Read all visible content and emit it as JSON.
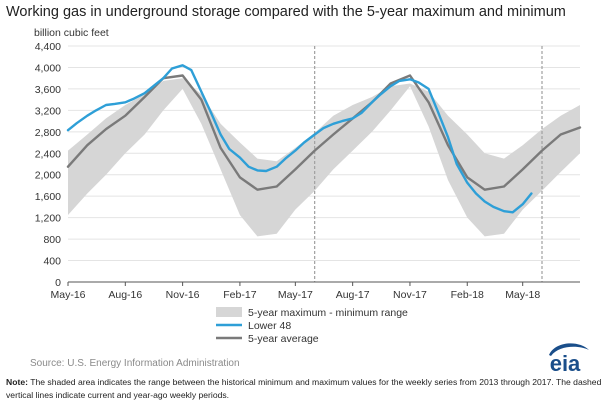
{
  "title": "Working gas in underground  storage compared with the 5-year maximum and minimum",
  "source": "Source:  U.S. Energy Information Administration",
  "note_label": "Note:",
  "note_text": " The shaded area indicates the range between the historical minimum and maximum values for the weekly series from 2013 through 2017. The dashed vertical lines indicate current and year-ago weekly periods.",
  "logo_text": "eia",
  "colors": {
    "range": "#d6d6d6",
    "lower48": "#2e9fd7",
    "avg": "#7a7a7a",
    "dashed": "#a0a0a0",
    "eia": "#1a4e8a"
  },
  "chart_data": {
    "type": "line",
    "ylabel": "billion cubic feet",
    "ylim": [
      0,
      4400
    ],
    "yticks": [
      0,
      400,
      800,
      1200,
      1600,
      2000,
      2400,
      2800,
      3200,
      3600,
      4000,
      4400
    ],
    "ytick_labels": [
      "0",
      "400",
      "800",
      "1,200",
      "1,600",
      "2,000",
      "2,400",
      "2,800",
      "3,200",
      "3,600",
      "4,000",
      "4,400"
    ],
    "xlim": [
      "2016-05-01",
      "2018-08-01"
    ],
    "xticks": [
      "2016-05-01",
      "2016-08-01",
      "2016-11-01",
      "2017-02-01",
      "2017-05-01",
      "2017-08-01",
      "2017-11-01",
      "2018-02-01",
      "2018-05-01"
    ],
    "xtick_labels": [
      "May-16",
      "Aug-16",
      "Nov-16",
      "Feb-17",
      "May-17",
      "Aug-17",
      "Nov-17",
      "Feb-18",
      "May-18"
    ],
    "dashed_lines": [
      "2017-06-01",
      "2018-06-01"
    ],
    "grid": true,
    "legend_position": "bottom",
    "legend": [
      "5-year maximum - minimum range",
      "Lower 48",
      "5-year average"
    ],
    "range": {
      "name": "5-year maximum - minimum range",
      "x": [
        "2016-05-01",
        "2016-06-01",
        "2016-07-01",
        "2016-08-01",
        "2016-09-01",
        "2016-10-01",
        "2016-11-01",
        "2016-12-01",
        "2017-01-01",
        "2017-02-01",
        "2017-03-01",
        "2017-04-01",
        "2017-05-01",
        "2017-06-01",
        "2017-07-01",
        "2017-08-01",
        "2017-09-01",
        "2017-10-01",
        "2017-11-01",
        "2017-12-01",
        "2018-01-01",
        "2018-02-01",
        "2018-03-01",
        "2018-04-01",
        "2018-05-01",
        "2018-06-01",
        "2018-07-01",
        "2018-08-01"
      ],
      "max": [
        2450,
        2750,
        3050,
        3300,
        3500,
        3750,
        3800,
        3500,
        2950,
        2600,
        2300,
        2250,
        2500,
        2780,
        3100,
        3300,
        3450,
        3650,
        3700,
        3550,
        3100,
        2750,
        2400,
        2300,
        2550,
        2850,
        3100,
        3300
      ],
      "min": [
        1250,
        1650,
        2000,
        2400,
        2750,
        3200,
        3600,
        2950,
        2100,
        1250,
        850,
        900,
        1350,
        1700,
        2100,
        2450,
        2800,
        3200,
        3650,
        2900,
        1900,
        1200,
        850,
        900,
        1350,
        1700,
        2050,
        2400
      ]
    },
    "series": [
      {
        "name": "Lower 48",
        "x": [
          "2016-05-01",
          "2016-05-15",
          "2016-06-01",
          "2016-06-15",
          "2016-07-01",
          "2016-07-15",
          "2016-08-01",
          "2016-08-15",
          "2016-09-01",
          "2016-09-15",
          "2016-10-01",
          "2016-10-15",
          "2016-11-01",
          "2016-11-15",
          "2016-12-01",
          "2016-12-15",
          "2017-01-01",
          "2017-01-15",
          "2017-02-01",
          "2017-02-15",
          "2017-03-01",
          "2017-03-15",
          "2017-04-01",
          "2017-04-15",
          "2017-05-01",
          "2017-05-15",
          "2017-06-01",
          "2017-06-15",
          "2017-07-01",
          "2017-07-15",
          "2017-08-01",
          "2017-08-15",
          "2017-09-01",
          "2017-09-15",
          "2017-10-01",
          "2017-10-15",
          "2017-11-01",
          "2017-11-15",
          "2017-12-01",
          "2017-12-15",
          "2018-01-01",
          "2018-01-15",
          "2018-02-01",
          "2018-02-15",
          "2018-03-01",
          "2018-03-15",
          "2018-04-01",
          "2018-04-15",
          "2018-05-01",
          "2018-05-15"
        ],
        "values": [
          2830,
          2960,
          3100,
          3200,
          3300,
          3320,
          3350,
          3420,
          3520,
          3650,
          3800,
          3980,
          4040,
          3950,
          3550,
          3200,
          2750,
          2480,
          2320,
          2150,
          2080,
          2070,
          2150,
          2300,
          2450,
          2600,
          2750,
          2870,
          2950,
          3000,
          3050,
          3150,
          3350,
          3500,
          3650,
          3750,
          3780,
          3720,
          3600,
          3200,
          2700,
          2200,
          1850,
          1650,
          1500,
          1400,
          1320,
          1300,
          1450,
          1650
        ]
      },
      {
        "name": "5-year average",
        "x": [
          "2016-05-01",
          "2016-06-01",
          "2016-07-01",
          "2016-08-01",
          "2016-09-01",
          "2016-10-01",
          "2016-11-01",
          "2016-12-01",
          "2017-01-01",
          "2017-02-01",
          "2017-03-01",
          "2017-04-01",
          "2017-05-01",
          "2017-06-01",
          "2017-07-01",
          "2017-08-01",
          "2017-09-01",
          "2017-10-01",
          "2017-11-01",
          "2017-12-01",
          "2018-01-01",
          "2018-02-01",
          "2018-03-01",
          "2018-04-01",
          "2018-05-01",
          "2018-06-01",
          "2018-07-01",
          "2018-08-01"
        ],
        "values": [
          2150,
          2550,
          2850,
          3100,
          3450,
          3800,
          3850,
          3400,
          2500,
          1950,
          1720,
          1780,
          2100,
          2450,
          2750,
          3050,
          3350,
          3700,
          3850,
          3350,
          2550,
          1950,
          1720,
          1780,
          2100,
          2450,
          2750,
          2880
        ]
      }
    ]
  }
}
